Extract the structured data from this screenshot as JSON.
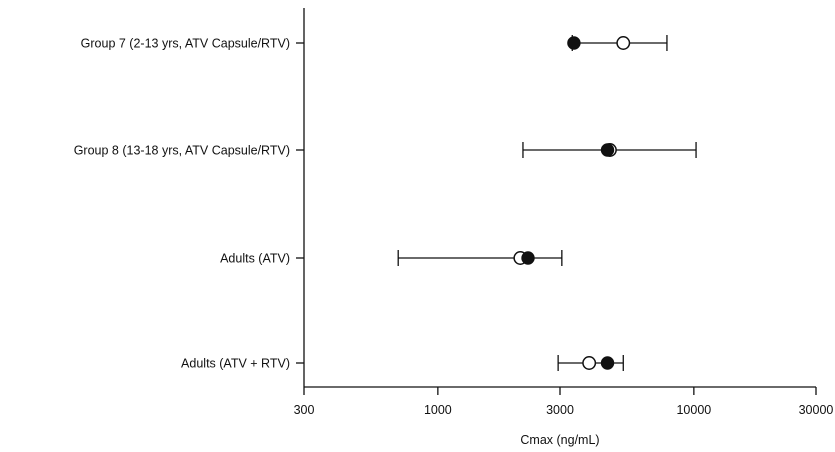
{
  "chart_data": {
    "type": "scatter",
    "title": "",
    "xlabel": "Cmax (ng/mL)",
    "ylabel": "",
    "xscale": "log",
    "xlim": [
      300,
      30000
    ],
    "xticks": [
      300,
      1000,
      3000,
      10000,
      30000
    ],
    "xtick_labels": [
      "300",
      "1000",
      "3000",
      "10000",
      "30000"
    ],
    "categories": [
      "Group 7 (2-13 yrs, ATV Capsule/RTV)",
      "Group 8 (13-18 yrs, ATV Capsule/RTV)",
      "Adults (ATV)",
      "Adults (ATV + RTV)"
    ],
    "series": [
      {
        "marker": "filled-circle",
        "values": [
          3400,
          4600,
          2250,
          4600
        ]
      },
      {
        "marker": "open-circle",
        "values": [
          5300,
          4700,
          2100,
          3900
        ],
        "err_low": [
          3350,
          2150,
          700,
          2950
        ],
        "err_high": [
          7850,
          10200,
          3050,
          5300
        ]
      }
    ],
    "grid": false,
    "legend": "none"
  }
}
